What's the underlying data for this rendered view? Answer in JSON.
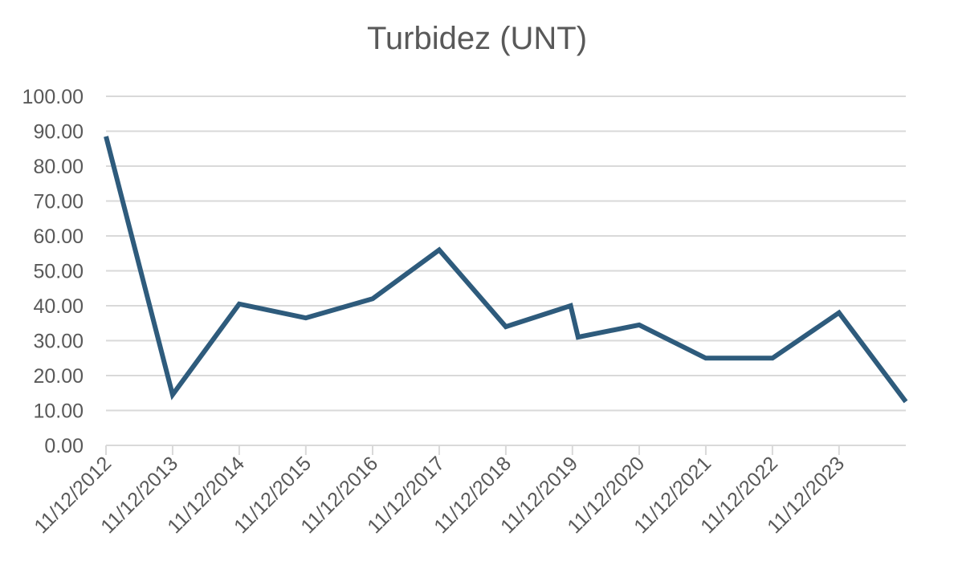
{
  "chart_data": {
    "type": "line",
    "title": "Turbidez (UNT)",
    "xlabel": "",
    "ylabel": "",
    "ylim": [
      0,
      100
    ],
    "y_ticks": [
      "0.00",
      "10.00",
      "20.00",
      "30.00",
      "40.00",
      "50.00",
      "60.00",
      "70.00",
      "80.00",
      "90.00",
      "100.00"
    ],
    "x_ticks": [
      "11/12/2012",
      "11/12/2013",
      "11/12/2014",
      "11/12/2015",
      "11/12/2016",
      "11/12/2017",
      "11/12/2018",
      "11/12/2019",
      "11/12/2020",
      "11/12/2021",
      "11/12/2022",
      "11/12/2023"
    ],
    "x_range": [
      "11/12/2012",
      "11/12/2024"
    ],
    "grid": true,
    "legend": "none",
    "line_color": "#2E5B7C",
    "series": [
      {
        "points": [
          {
            "x": "11/12/2012",
            "y": 88.5
          },
          {
            "x": "11/12/2013",
            "y": 14.5
          },
          {
            "x": "11/12/2014",
            "y": 40.5
          },
          {
            "x": "11/12/2015",
            "y": 36.5
          },
          {
            "x": "11/12/2016",
            "y": 42.0
          },
          {
            "x": "11/12/2017",
            "y": 56.0
          },
          {
            "x": "11/12/2018",
            "y": 34.0
          },
          {
            "x": "01/12/2019",
            "y": 40.0
          },
          {
            "x": "11/01/2020",
            "y": 31.0
          },
          {
            "x": "11/12/2020",
            "y": 34.5
          },
          {
            "x": "11/12/2021",
            "y": 25.0
          },
          {
            "x": "11/12/2022",
            "y": 25.0
          },
          {
            "x": "11/12/2023",
            "y": 38.0
          },
          {
            "x": "11/12/2024",
            "y": 12.5
          }
        ]
      }
    ]
  }
}
